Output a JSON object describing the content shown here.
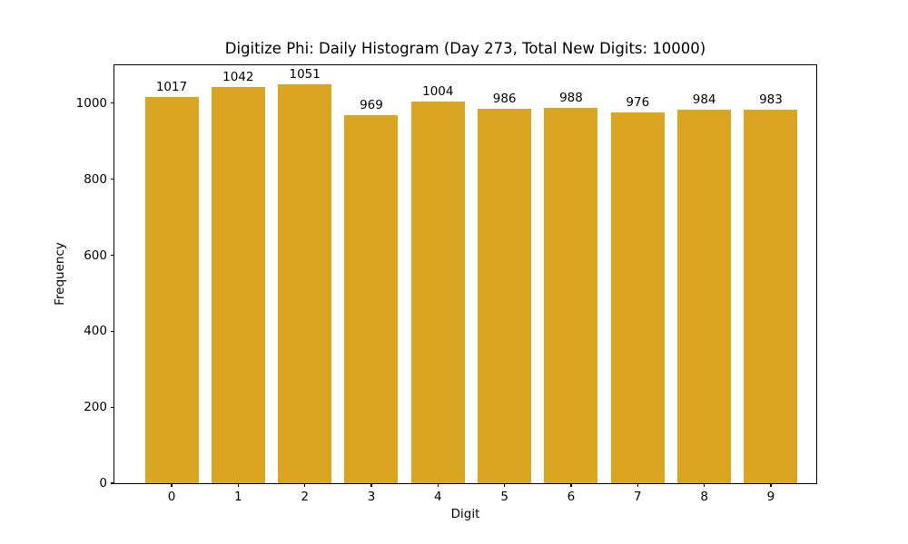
{
  "chart_data": {
    "type": "bar",
    "title": "Digitize Phi: Daily Histogram (Day 273, Total New Digits: 10000)",
    "xlabel": "Digit",
    "ylabel": "Frequency",
    "categories": [
      "0",
      "1",
      "2",
      "3",
      "4",
      "5",
      "6",
      "7",
      "8",
      "9"
    ],
    "values": [
      1017,
      1042,
      1051,
      969,
      1004,
      986,
      988,
      976,
      984,
      983
    ],
    "value_labels": [
      "1017",
      "1042",
      "1051",
      "969",
      "1004",
      "986",
      "988",
      "976",
      "984",
      "983"
    ],
    "yticks": [
      0,
      200,
      400,
      600,
      800,
      1000
    ],
    "ytick_labels": [
      "0",
      "200",
      "400",
      "600",
      "800",
      "1000"
    ],
    "ylim": [
      0,
      1100
    ],
    "bar_color": "#DAA520",
    "grid": false,
    "legend_position": "none"
  }
}
